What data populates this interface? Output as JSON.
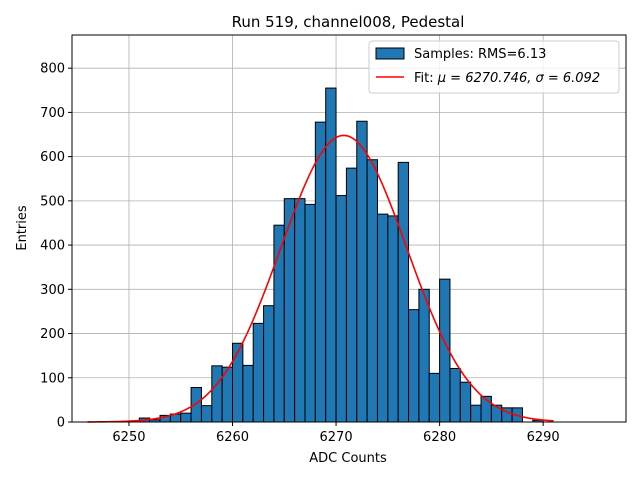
{
  "chart_data": {
    "type": "bar",
    "title": "Run 519, channel008, Pedestal",
    "xlabel": "ADC Counts",
    "ylabel": "Entries",
    "xlim": [
      6244.5,
      6298
    ],
    "ylim": [
      0,
      875
    ],
    "xticks": [
      6250,
      6260,
      6270,
      6280,
      6290
    ],
    "yticks": [
      0,
      100,
      200,
      300,
      400,
      500,
      600,
      700,
      800
    ],
    "grid": true,
    "legend_position": "top-right",
    "bar_color": "#1f77b4",
    "fit_color": "#ff0000",
    "histogram": {
      "name": "Samples: RMS=6.13",
      "bin_edges_start": 6251,
      "bin_width": 1,
      "values": [
        9,
        5,
        15,
        18,
        20,
        78,
        37,
        127,
        124,
        178,
        128,
        223,
        263,
        445,
        505,
        505,
        492,
        678,
        755,
        512,
        574,
        680,
        593,
        470,
        466,
        587,
        254,
        300,
        110,
        323,
        121,
        90,
        38,
        58,
        38,
        32,
        32,
        0,
        4
      ]
    },
    "fit": {
      "name_prefix": "Fit: ",
      "name_math": "μ = 6270.746, σ = 6.092",
      "mu": 6270.746,
      "sigma": 6.092,
      "amplitude": 648,
      "x_range": [
        6246,
        6291
      ]
    }
  }
}
